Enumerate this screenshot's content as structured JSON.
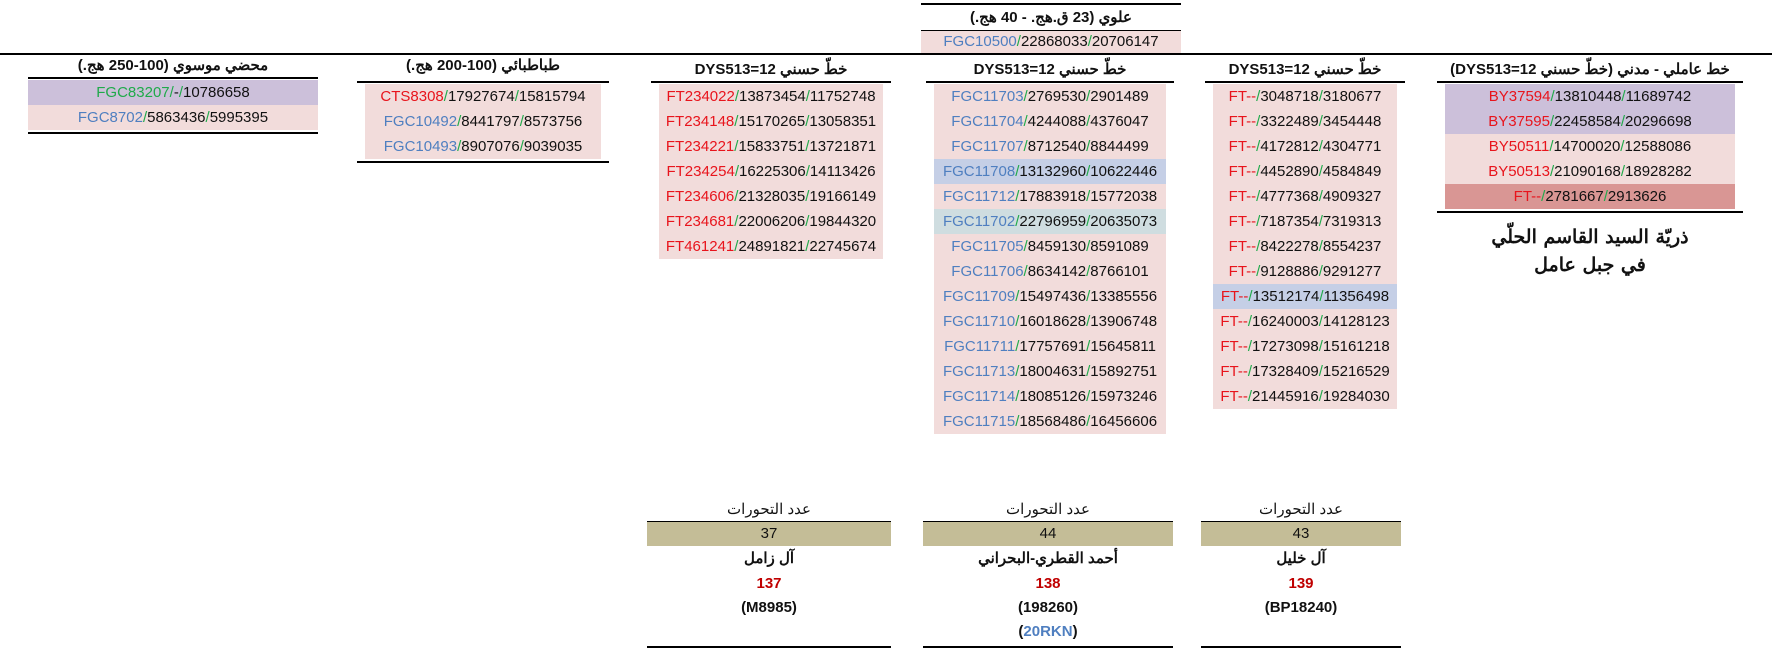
{
  "top_group": {
    "title": "علوي (23 ق.هج. - 40 هج.)",
    "row": {
      "snp": "FGC10500",
      "a": "22868033",
      "b": "20706147"
    }
  },
  "columns": [
    {
      "id": "c1",
      "title": "محضي موسوي (100-250 هج.)",
      "rows": [
        {
          "snp": "FGC83207",
          "snp_color": "green",
          "a": "-",
          "b": "10786658",
          "bg": "lav"
        },
        {
          "snp": "FGC8702",
          "snp_color": "blue",
          "a": "5863436",
          "b": "5995395",
          "bg": "pink"
        }
      ]
    },
    {
      "id": "c2",
      "title": "طباطبائي (100-200 هج.)",
      "rows": [
        {
          "snp": "CTS8308",
          "snp_color": "red",
          "a": "17927674",
          "b": "15815794",
          "bg": "pink"
        },
        {
          "snp": "FGC10492",
          "snp_color": "blue",
          "a": "8441797",
          "b": "8573756",
          "bg": "pink"
        },
        {
          "snp": "FGC10493",
          "snp_color": "blue",
          "a": "8907076",
          "b": "9039035",
          "bg": "pink"
        }
      ]
    },
    {
      "id": "c3",
      "title": "خطّ حسني DYS513=12",
      "rows": [
        {
          "snp": "FT234022",
          "snp_color": "red",
          "a": "13873454",
          "b": "11752748",
          "bg": "pink"
        },
        {
          "snp": "FT234148",
          "snp_color": "red",
          "a": "15170265",
          "b": "13058351",
          "bg": "pink"
        },
        {
          "snp": "FT234221",
          "snp_color": "red",
          "a": "15833751",
          "b": "13721871",
          "bg": "pink"
        },
        {
          "snp": "FT234254",
          "snp_color": "red",
          "a": "16225306",
          "b": "14113426",
          "bg": "pink"
        },
        {
          "snp": "FT234606",
          "snp_color": "red",
          "a": "21328035",
          "b": "19166149",
          "bg": "pink"
        },
        {
          "snp": "FT234681",
          "snp_color": "red",
          "a": "22006206",
          "b": "19844320",
          "bg": "pink"
        },
        {
          "snp": "FT461241",
          "snp_color": "red",
          "a": "24891821",
          "b": "22745674",
          "bg": "pink"
        }
      ],
      "footer": {
        "label": "عدد التحورات",
        "count": "37",
        "name": "آل زامل",
        "num": "137",
        "id": "(M8985)",
        "code": ""
      }
    },
    {
      "id": "c4",
      "title": "خطّ حسني DYS513=12",
      "rows": [
        {
          "snp": "FGC11703",
          "snp_color": "blue",
          "a": "2769530",
          "b": "2901489",
          "bg": "pink"
        },
        {
          "snp": "FGC11704",
          "snp_color": "blue",
          "a": "4244088",
          "b": "4376047",
          "bg": "pink"
        },
        {
          "snp": "FGC11707",
          "snp_color": "blue",
          "a": "8712540",
          "b": "8844499",
          "bg": "pink"
        },
        {
          "snp": "FGC11708",
          "snp_color": "blue",
          "a": "13132960",
          "b": "10622446",
          "bg": "blue"
        },
        {
          "snp": "FGC11712",
          "snp_color": "blue",
          "a": "17883918",
          "b": "15772038",
          "bg": "pink"
        },
        {
          "snp": "FGC11702",
          "snp_color": "blue",
          "a": "22796959",
          "b": "20635073",
          "bg": "gray"
        },
        {
          "snp": "FGC11705",
          "snp_color": "blue",
          "a": "8459130",
          "b": "8591089",
          "bg": "pink"
        },
        {
          "snp": "FGC11706",
          "snp_color": "blue",
          "a": "8634142",
          "b": "8766101",
          "bg": "pink"
        },
        {
          "snp": "FGC11709",
          "snp_color": "blue",
          "a": "15497436",
          "b": "13385556",
          "bg": "pink"
        },
        {
          "snp": "FGC11710",
          "snp_color": "blue",
          "a": "16018628",
          "b": "13906748",
          "bg": "pink"
        },
        {
          "snp": "FGC11711",
          "snp_color": "blue",
          "a": "17757691",
          "b": "15645811",
          "bg": "pink"
        },
        {
          "snp": "FGC11713",
          "snp_color": "blue",
          "a": "18004631",
          "b": "15892751",
          "bg": "pink"
        },
        {
          "snp": "FGC11714",
          "snp_color": "blue",
          "a": "18085126",
          "b": "15973246",
          "bg": "pink"
        },
        {
          "snp": "FGC11715",
          "snp_color": "blue",
          "a": "18568486",
          "b": "16456606",
          "bg": "pink"
        }
      ],
      "footer": {
        "label": "عدد التحورات",
        "count": "44",
        "name": "أحمد القطري-البحراني",
        "num": "138",
        "id": "(198260)",
        "code": "(20RKN)"
      }
    },
    {
      "id": "c5",
      "title": "خطّ حسني DYS513=12",
      "rows": [
        {
          "snp": "FT--",
          "snp_color": "red",
          "a": "3048718",
          "b": "3180677",
          "bg": "pink"
        },
        {
          "snp": "FT--",
          "snp_color": "red",
          "a": "3322489",
          "b": "3454448",
          "bg": "pink"
        },
        {
          "snp": "FT--",
          "snp_color": "red",
          "a": "4172812",
          "b": "4304771",
          "bg": "pink"
        },
        {
          "snp": "FT--",
          "snp_color": "red",
          "a": "4452890",
          "b": "4584849",
          "bg": "pink"
        },
        {
          "snp": "FT--",
          "snp_color": "red",
          "a": "4777368",
          "b": "4909327",
          "bg": "pink"
        },
        {
          "snp": "FT--",
          "snp_color": "red",
          "a": "7187354",
          "b": "7319313",
          "bg": "pink"
        },
        {
          "snp": "FT--",
          "snp_color": "red",
          "a": "8422278",
          "b": "8554237",
          "bg": "pink"
        },
        {
          "snp": "FT--",
          "snp_color": "red",
          "a": "9128886",
          "b": "9291277",
          "bg": "pink"
        },
        {
          "snp": "FT--",
          "snp_color": "red",
          "a": "13512174",
          "b": "11356498",
          "bg": "blue"
        },
        {
          "snp": "FT--",
          "snp_color": "red",
          "a": "16240003",
          "b": "14128123",
          "bg": "pink"
        },
        {
          "snp": "FT--",
          "snp_color": "red",
          "a": "17273098",
          "b": "15161218",
          "bg": "pink"
        },
        {
          "snp": "FT--",
          "snp_color": "red",
          "a": "17328409",
          "b": "15216529",
          "bg": "pink"
        },
        {
          "snp": "FT--",
          "snp_color": "red",
          "a": "21445916",
          "b": "19284030",
          "bg": "pink"
        }
      ],
      "footer": {
        "label": "عدد التحورات",
        "count": "43",
        "name": "آل خليل",
        "num": "139",
        "id": "(BP18240)",
        "code": ""
      }
    },
    {
      "id": "c6",
      "title": "خط عاملي - مدني (خطّ حسني DYS513=12)",
      "rows": [
        {
          "snp": "BY37594",
          "snp_color": "red",
          "a": "13810448",
          "b": "11689742",
          "bg": "lav"
        },
        {
          "snp": "BY37595",
          "snp_color": "red",
          "a": "22458584",
          "b": "20296698",
          "bg": "lav"
        },
        {
          "snp": "BY50511",
          "snp_color": "red",
          "a": "14700020",
          "b": "12588086",
          "bg": "pink"
        },
        {
          "snp": "BY50513",
          "snp_color": "red",
          "a": "21090168",
          "b": "18928282",
          "bg": "pink"
        },
        {
          "snp": "FT--",
          "snp_color": "red",
          "a": "2781667",
          "b": "2913626",
          "bg": "deep"
        }
      ],
      "caption": [
        "ذريّة السيد القاسم الحلّي",
        "في جبل عامل"
      ]
    }
  ]
}
